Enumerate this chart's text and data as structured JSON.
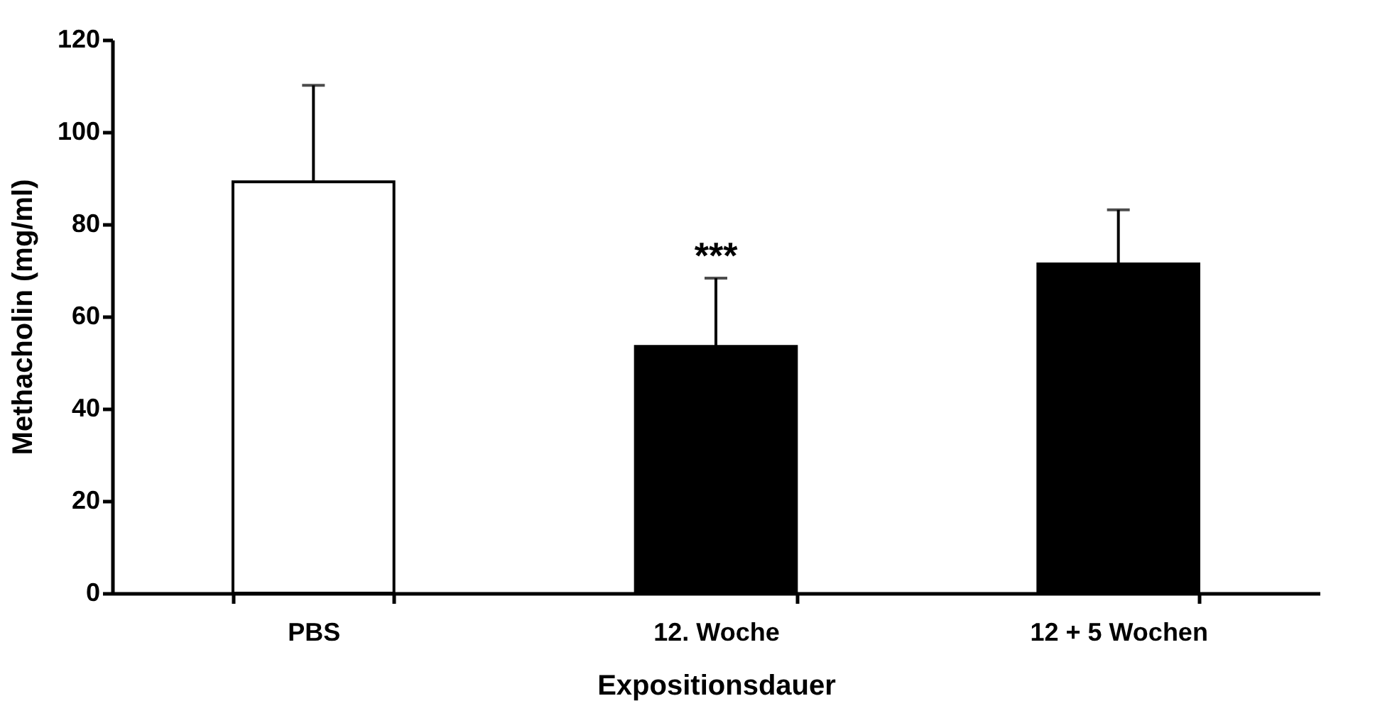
{
  "chart_data": {
    "type": "bar",
    "xlabel": "Expositionsdauer",
    "ylabel": "Methacholin (mg/ml)",
    "categories": [
      "PBS",
      "12. Woche",
      "12 + 5 Wochen"
    ],
    "values": [
      89.2,
      53.5,
      71.4
    ],
    "colors": [
      "#ffffff",
      "#000000",
      "#000000"
    ],
    "errors": [
      [
        89.2,
        110.1
      ],
      [
        53.5,
        68.3
      ],
      [
        71.4,
        83.1
      ]
    ],
    "ylim": [
      0,
      120
    ],
    "yticks": [
      0,
      20,
      40,
      60,
      80,
      100,
      120
    ],
    "grid": false,
    "annotations": [
      {
        "text": "***",
        "x": "12. Woche",
        "y": 68.3
      }
    ]
  }
}
